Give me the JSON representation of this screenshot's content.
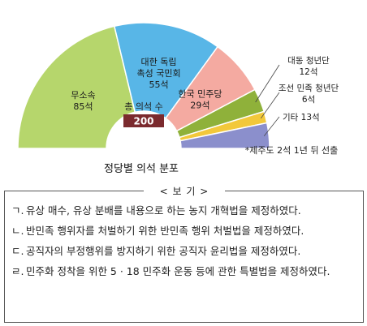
{
  "chart_data": {
    "type": "pie",
    "variant": "half-donut",
    "title": "정당별 의석 분포",
    "total_caption": "총 의석 수",
    "total_value": "200",
    "footnote": "*제주도 2석 1년 뒤 선출",
    "slices": [
      {
        "name": "무소속",
        "value": 85,
        "label": "85석",
        "color": "#b6d66c"
      },
      {
        "name": "대한 독립 촉성 국민회",
        "label_lines": [
          "대한 독립",
          "촉성 국민회"
        ],
        "value": 55,
        "label": "55석",
        "color": "#58b6e7"
      },
      {
        "name": "한국 민주당",
        "value": 29,
        "label": "29석",
        "color": "#f4aaa1"
      },
      {
        "name": "대동 청년단",
        "value": 12,
        "label": "12석",
        "color": "#8fb13a"
      },
      {
        "name": "조선 민족 청년단",
        "value": 6,
        "label": "6석",
        "color": "#f2c83b"
      },
      {
        "name": "기타",
        "value": 13,
        "label": "13석",
        "color": "#8b8fcc"
      }
    ]
  },
  "box": {
    "heading": "< 보 기 >",
    "items": [
      {
        "mark": "ㄱ.",
        "text": "유상 매수, 유상 분배를 내용으로 하는 농지 개혁법을 제정하였다."
      },
      {
        "mark": "ㄴ.",
        "text": "반민족 행위자를 처벌하기 위한 반민족 행위 처벌법을 제정하였다."
      },
      {
        "mark": "ㄷ.",
        "text": "공직자의 부정행위를 방지하기 위한 공직자 윤리법을 제정하였다."
      },
      {
        "mark": "ㄹ.",
        "text": "민주화 정착을 위한 5 · 18 민주화 운동 등에 관한 특별법을 제정하였다."
      }
    ]
  }
}
